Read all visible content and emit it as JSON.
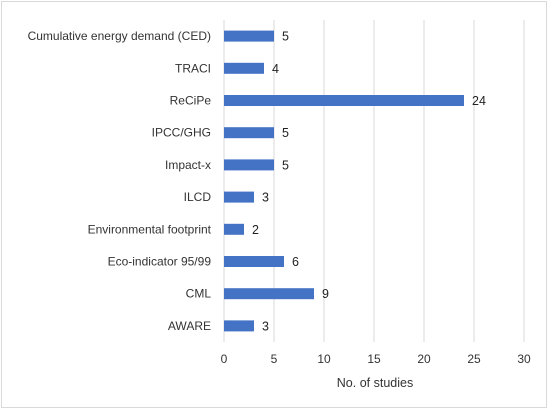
{
  "chart_data": {
    "type": "bar",
    "orientation": "horizontal",
    "categories": [
      "Cumulative energy demand (CED)",
      "TRACI",
      "ReCiPe",
      "IPCC/GHG",
      "Impact-x",
      "ILCD",
      "Environmental footprint",
      "Eco-indicator 95/99",
      "CML",
      "AWARE"
    ],
    "values": [
      5,
      4,
      24,
      5,
      5,
      3,
      2,
      6,
      9,
      3
    ],
    "data_labels": [
      "5",
      "4",
      "24",
      "5",
      "5",
      "3",
      "2",
      "6",
      "9",
      "3"
    ],
    "xlabel": "No. of studies",
    "ylabel": "",
    "xlim": [
      0,
      30
    ],
    "xticks": [
      0,
      5,
      10,
      15,
      20,
      25,
      30
    ],
    "grid": "vertical",
    "legend": "none",
    "bar_color": "#4472c4",
    "grid_color": "#d9d9d9"
  }
}
